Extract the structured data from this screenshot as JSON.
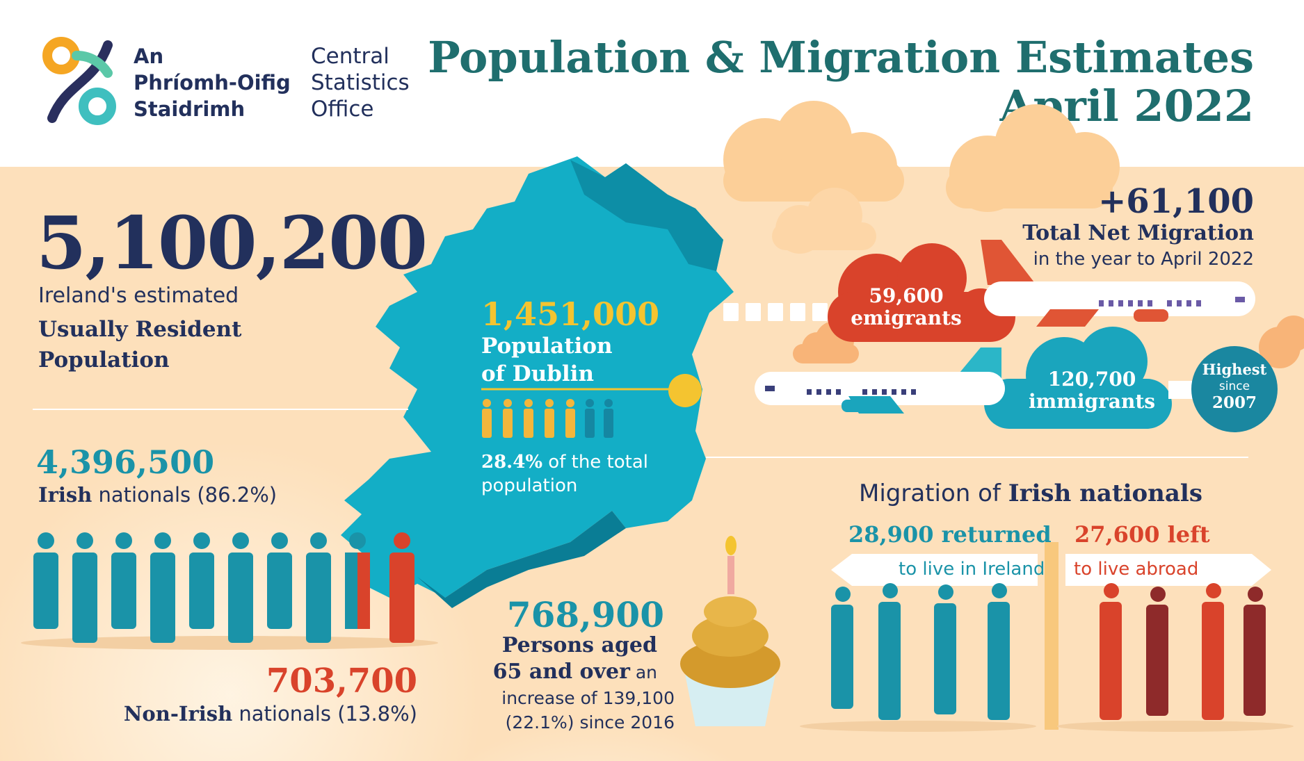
{
  "header": {
    "logo_ga": [
      "An",
      "Phríomh-Oifig",
      "Staidrimh"
    ],
    "logo_en": [
      "Central",
      "Statistics",
      "Office"
    ],
    "title_line1": "Population & Migration Estimates",
    "title_line2": "April 2022"
  },
  "population": {
    "total": "5,100,200",
    "label_line1": "Ireland's estimated",
    "label_bold": "Usually Resident Population"
  },
  "irish": {
    "count": "4,396,500",
    "label_bold": "Irish",
    "label_rest": " nationals (86.2%)",
    "share_percent": 86.2
  },
  "non_irish": {
    "count": "703,700",
    "label_bold": "Non-Irish",
    "label_rest": " nationals (13.8%)",
    "share_percent": 13.8
  },
  "dublin": {
    "count": "1,451,000",
    "label": [
      "Population",
      "of Dublin"
    ],
    "pct_bold": "28.4%",
    "pct_rest": " of the total population"
  },
  "net_migration": {
    "value": "+61,100",
    "label": "Total Net Migration",
    "sub": "in the year to April 2022"
  },
  "emigrants": {
    "count": "59,600",
    "label": "emigrants"
  },
  "immigrants": {
    "count": "120,700",
    "label": "immigrants"
  },
  "highest_badge": {
    "line1": "Highest",
    "line2": "since",
    "line3": "2007"
  },
  "elderly": {
    "count": "768,900",
    "label_line1": "Persons aged",
    "label_bold2": "65 and over",
    "label_rest2": " an",
    "sub_line1": "increase of 139,100",
    "sub_line2": "(22.1%) since 2016"
  },
  "irish_migration": {
    "title_plain": "Migration of ",
    "title_bold": "Irish nationals",
    "returned_bold": "28,900",
    "returned_rest": " returned",
    "returned_sign": "to live in Ireland",
    "left_bold": "27,600",
    "left_rest": " left",
    "left_sign": "to live abroad"
  },
  "colors": {
    "navy": "#22305c",
    "teal": "#1a93a8",
    "map_teal": "#13aec6",
    "red": "#d9432b",
    "yellow": "#f4c430",
    "peach": "#fde0bb",
    "title_green": "#1f6e6e"
  }
}
